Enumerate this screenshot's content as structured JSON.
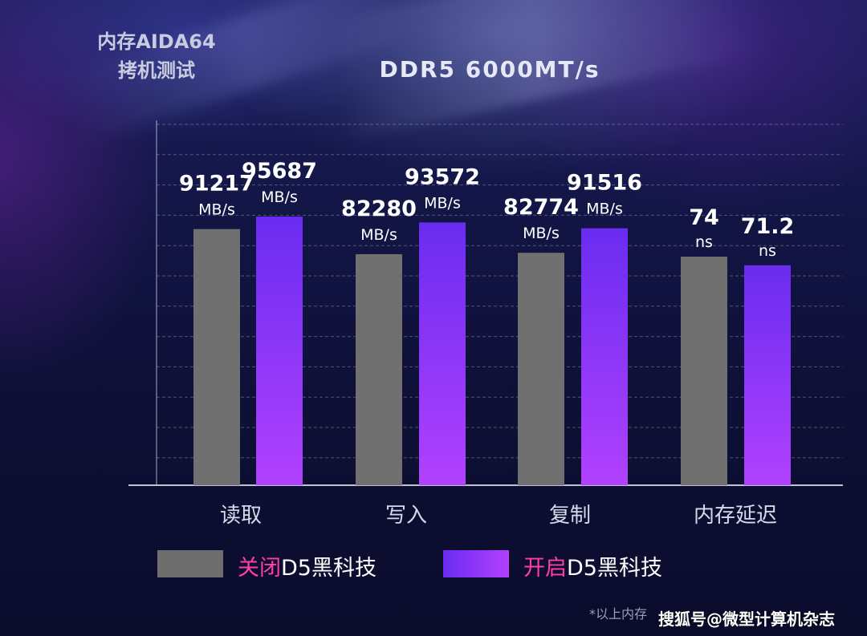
{
  "corner_label": {
    "line1": "内存AIDA64",
    "line2": "拷机测试"
  },
  "footnote": "*以上内存",
  "watermark": "搜狐号@微型计算机杂志",
  "legend": {
    "off": {
      "prefix": "关闭",
      "suffix": "D5黑科技",
      "color": "#6e6e6e"
    },
    "on": {
      "prefix": "开启",
      "suffix": "D5黑科技",
      "color": "#8a35ff"
    }
  },
  "colors": {
    "off_bar": "#707070",
    "on_bar_top": "#6a2cf0",
    "on_bar_bottom": "#b141ff",
    "legend_pink": "#ff3fa8"
  },
  "chart_data": {
    "type": "bar",
    "title": "DDR5 6000MT/s",
    "categories": [
      "读取",
      "写入",
      "复制",
      "内存延迟"
    ],
    "series": [
      {
        "name": "关闭D5黑科技",
        "values": [
          91217,
          82280,
          82774,
          74
        ],
        "value_labels": [
          "91217",
          "82280",
          "82774",
          "74"
        ],
        "units": [
          "MB/s",
          "MB/s",
          "MB/s",
          "ns"
        ]
      },
      {
        "name": "开启D5黑科技",
        "values": [
          95687,
          93572,
          91516,
          71.2
        ],
        "value_labels": [
          "95687",
          "93572",
          "91516",
          "71.2"
        ],
        "units": [
          "MB/s",
          "MB/s",
          "MB/s",
          "ns"
        ]
      }
    ],
    "grid": true,
    "legend_position": "bottom"
  }
}
